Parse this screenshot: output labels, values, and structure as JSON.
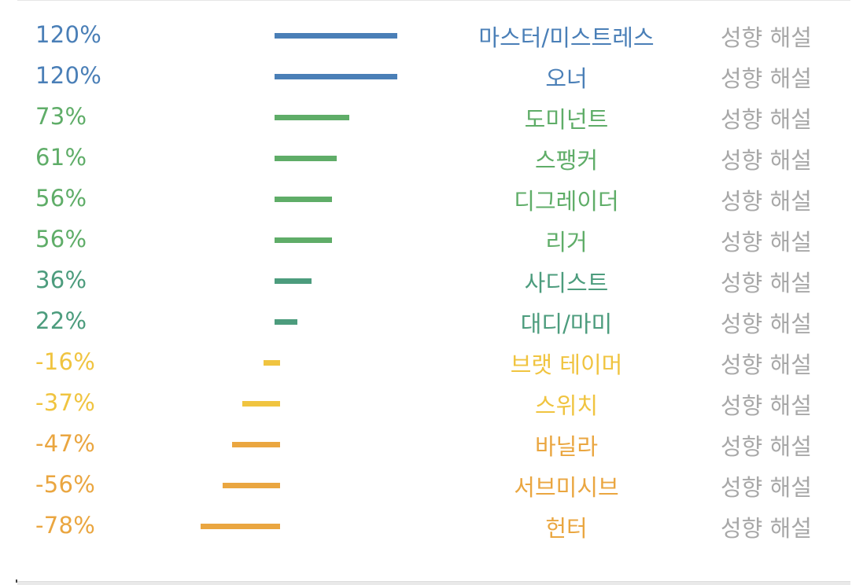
{
  "rows": [
    {
      "percent_label": "120%",
      "value": 120,
      "type_name": "마스터/미스트레스",
      "link": "성향 해설",
      "color": "#4a7fb7"
    },
    {
      "percent_label": "120%",
      "value": 120,
      "type_name": "오너",
      "link": "성향 해설",
      "color": "#4a7fb7"
    },
    {
      "percent_label": "73%",
      "value": 73,
      "type_name": "도미넌트",
      "link": "성향 해설",
      "color": "#5fad68"
    },
    {
      "percent_label": "61%",
      "value": 61,
      "type_name": "스팽커",
      "link": "성향 해설",
      "color": "#5fad68"
    },
    {
      "percent_label": "56%",
      "value": 56,
      "type_name": "디그레이더",
      "link": "성향 해설",
      "color": "#5fad68"
    },
    {
      "percent_label": "56%",
      "value": 56,
      "type_name": "리거",
      "link": "성향 해설",
      "color": "#5fad68"
    },
    {
      "percent_label": "36%",
      "value": 36,
      "type_name": "사디스트",
      "link": "성향 해설",
      "color": "#4c9c7d"
    },
    {
      "percent_label": "22%",
      "value": 22,
      "type_name": "대디/마미",
      "link": "성향 해설",
      "color": "#4c9c7d"
    },
    {
      "percent_label": "-16%",
      "value": -16,
      "type_name": "브랫 테이머",
      "link": "성향 해설",
      "color": "#f0c440"
    },
    {
      "percent_label": "-37%",
      "value": -37,
      "type_name": "스위치",
      "link": "성향 해설",
      "color": "#f0c440"
    },
    {
      "percent_label": "-47%",
      "value": -47,
      "type_name": "바닐라",
      "link": "성향 해설",
      "color": "#eaa640"
    },
    {
      "percent_label": "-56%",
      "value": -56,
      "type_name": "서브미시브",
      "link": "성향 해설",
      "color": "#eaa640"
    },
    {
      "percent_label": "-78%",
      "value": -78,
      "type_name": "헌터",
      "link": "성향 해설",
      "color": "#eaa640"
    }
  ]
}
